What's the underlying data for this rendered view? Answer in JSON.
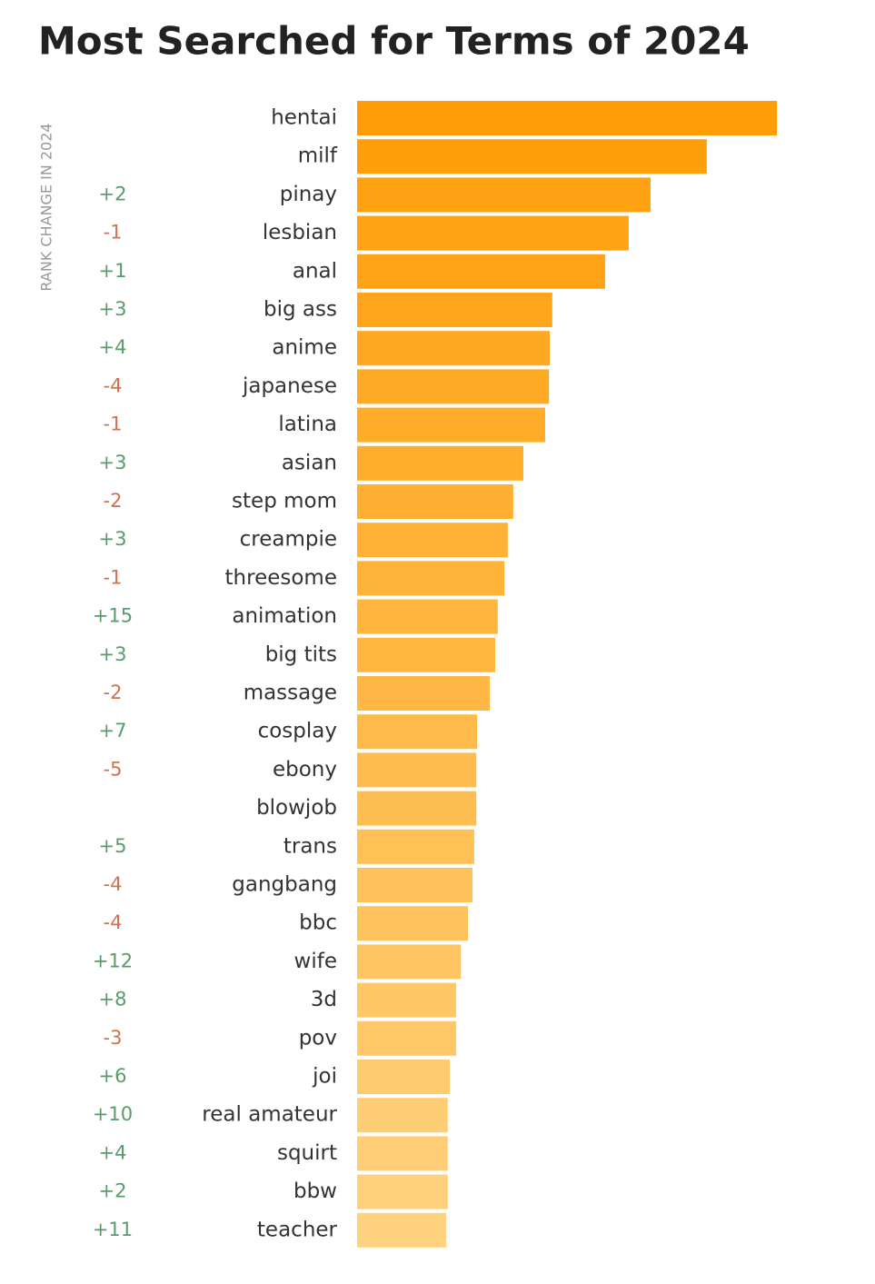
{
  "chart_data": {
    "type": "bar",
    "orientation": "horizontal",
    "title": "Most Searched for Terms of 2024",
    "rank_change_title": "RANK CHANGE IN 2024",
    "categories": [
      "hentai",
      "milf",
      "pinay",
      "lesbian",
      "anal",
      "big ass",
      "anime",
      "japanese",
      "latina",
      "asian",
      "step mom",
      "creampie",
      "threesome",
      "animation",
      "big tits",
      "massage",
      "cosplay",
      "ebony",
      "blowjob",
      "trans",
      "gangbang",
      "bbc",
      "wife",
      "3d",
      "pov",
      "joi",
      "real amateur",
      "squirt",
      "bbw",
      "teacher"
    ],
    "values": [
      100,
      83.3,
      69.9,
      64.7,
      59.1,
      46.5,
      45.9,
      45.7,
      44.8,
      39.6,
      37.2,
      35.9,
      35.1,
      33.5,
      32.9,
      31.6,
      28.6,
      28.4,
      28.4,
      27.9,
      27.5,
      26.4,
      24.7,
      23.6,
      23.6,
      22.1,
      21.6,
      21.6,
      21.6,
      21.2
    ],
    "rank_changes": [
      null,
      null,
      "+2",
      "-1",
      "+1",
      "+3",
      "+4",
      "-4",
      "-1",
      "+3",
      "-2",
      "+3",
      "-1",
      "+15",
      "+3",
      "-2",
      "+7",
      "-5",
      null,
      "+5",
      "-4",
      "-4",
      "+12",
      "+8",
      "-3",
      "+6",
      "+10",
      "+4",
      "+2",
      "+11"
    ],
    "rank_change_colors": {
      "up": "#5b9a6c",
      "down": "#d2714f"
    },
    "colors": [
      "#ff9d08",
      "#ffd27f"
    ],
    "xlim": [
      0,
      100
    ]
  }
}
